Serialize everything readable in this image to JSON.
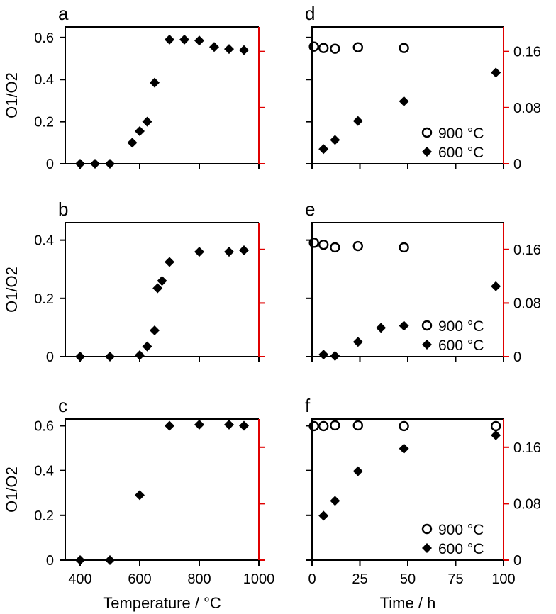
{
  "figure": {
    "x_axis_labels": {
      "temperature": "Temperature / °C",
      "time": "Time / h"
    },
    "y_axis_label": "O1/O2"
  },
  "chart_data": [
    {
      "panel": "a",
      "type": "scatter",
      "xlabel": "",
      "ylabel": "O1/O2",
      "xlim": [
        350,
        1000
      ],
      "ylim": [
        0,
        0.65
      ],
      "xticks": [
        400,
        600,
        800,
        1000
      ],
      "yticks": [
        0,
        0.2,
        0.4,
        0.6
      ],
      "ytick_labels": [
        "0",
        "0.2",
        "0.4",
        "0.6"
      ],
      "right_axis": {
        "lim": [
          0,
          0.195
        ],
        "ticks": [
          0,
          0.08,
          0.16
        ],
        "tick_labels": [],
        "color": "#e00000"
      },
      "series": [
        {
          "name": "O1/O2",
          "marker": "diamond",
          "x": [
            400,
            450,
            500,
            575,
            600,
            625,
            650,
            700,
            750,
            800,
            850,
            900,
            950
          ],
          "y": [
            0,
            0,
            0,
            0.1,
            0.155,
            0.2,
            0.385,
            0.59,
            0.59,
            0.585,
            0.555,
            0.545,
            0.54
          ]
        }
      ]
    },
    {
      "panel": "d",
      "type": "scatter",
      "xlabel": "",
      "ylabel": "",
      "xlim": [
        0,
        100
      ],
      "ylim": [
        0,
        0.65
      ],
      "xticks": [
        0,
        25,
        50,
        75,
        100
      ],
      "yticks": [
        0,
        0.2,
        0.4,
        0.6
      ],
      "ytick_labels": [],
      "right_axis": {
        "lim": [
          0,
          0.195
        ],
        "ticks": [
          0,
          0.08,
          0.16
        ],
        "tick_labels": [
          "0",
          "0.08",
          "0.16"
        ],
        "color": "#e00000"
      },
      "legend": [
        "900 °C",
        "600 °C"
      ],
      "series": [
        {
          "name": "900 °C",
          "marker": "circle",
          "axis": "right",
          "x": [
            1,
            6,
            12,
            24,
            48
          ],
          "y": [
            0.167,
            0.165,
            0.164,
            0.166,
            0.165
          ]
        },
        {
          "name": "600 °C",
          "marker": "diamond",
          "axis": "right",
          "x": [
            6,
            12,
            24,
            48,
            96
          ],
          "y": [
            0.021,
            0.034,
            0.061,
            0.089,
            0.13
          ]
        }
      ]
    },
    {
      "panel": "b",
      "type": "scatter",
      "xlabel": "",
      "ylabel": "O1/O2",
      "xlim": [
        350,
        1000
      ],
      "ylim": [
        0,
        0.46
      ],
      "xticks": [
        400,
        600,
        800,
        1000
      ],
      "yticks": [
        0,
        0.2,
        0.4
      ],
      "ytick_labels": [
        "0",
        "0.2",
        "0.4"
      ],
      "right_axis": {
        "lim": [
          0,
          0.2
        ],
        "ticks": [
          0,
          0.08,
          0.16
        ],
        "tick_labels": [],
        "color": "#e00000"
      },
      "series": [
        {
          "name": "O1/O2",
          "marker": "diamond",
          "x": [
            400,
            500,
            600,
            625,
            650,
            660,
            675,
            700,
            800,
            900,
            950
          ],
          "y": [
            0,
            0,
            0.005,
            0.035,
            0.09,
            0.235,
            0.26,
            0.325,
            0.36,
            0.36,
            0.365
          ]
        }
      ]
    },
    {
      "panel": "e",
      "type": "scatter",
      "xlabel": "",
      "ylabel": "",
      "xlim": [
        0,
        100
      ],
      "ylim": [
        0,
        0.46
      ],
      "xticks": [
        0,
        25,
        50,
        75,
        100
      ],
      "yticks": [
        0,
        0.2,
        0.4
      ],
      "ytick_labels": [],
      "right_axis": {
        "lim": [
          0,
          0.2
        ],
        "ticks": [
          0,
          0.08,
          0.16
        ],
        "tick_labels": [
          "0",
          "0.08",
          "0.16"
        ],
        "color": "#e00000"
      },
      "legend": [
        "900 °C",
        "600 °C"
      ],
      "series": [
        {
          "name": "900 °C",
          "marker": "circle",
          "axis": "right",
          "x": [
            1,
            6,
            12,
            24,
            48
          ],
          "y": [
            0.17,
            0.167,
            0.163,
            0.165,
            0.163
          ]
        },
        {
          "name": "600 °C",
          "marker": "diamond",
          "axis": "right",
          "x": [
            6,
            12,
            24,
            36,
            48,
            96
          ],
          "y": [
            0.003,
            0.001,
            0.022,
            0.043,
            0.046,
            0.105
          ]
        }
      ]
    },
    {
      "panel": "c",
      "type": "scatter",
      "xlabel": "Temperature / °C",
      "ylabel": "O1/O2",
      "xlim": [
        350,
        1000
      ],
      "ylim": [
        0,
        0.63
      ],
      "xticks": [
        400,
        600,
        800,
        1000
      ],
      "yticks": [
        0,
        0.2,
        0.4,
        0.6
      ],
      "ytick_labels": [
        "0",
        "0.2",
        "0.4",
        "0.6"
      ],
      "xtick_labels": [
        "400",
        "600",
        "800",
        "1000"
      ],
      "right_axis": {
        "lim": [
          0,
          0.2
        ],
        "ticks": [
          0,
          0.08,
          0.16
        ],
        "tick_labels": [],
        "color": "#e00000"
      },
      "series": [
        {
          "name": "O1/O2",
          "marker": "diamond",
          "x": [
            400,
            500,
            600,
            700,
            800,
            900,
            950
          ],
          "y": [
            0,
            0,
            0.29,
            0.6,
            0.605,
            0.605,
            0.6
          ]
        }
      ]
    },
    {
      "panel": "f",
      "type": "scatter",
      "xlabel": "Time / h",
      "ylabel": "",
      "xlim": [
        0,
        100
      ],
      "ylim": [
        0,
        0.63
      ],
      "xticks": [
        0,
        25,
        50,
        75,
        100
      ],
      "yticks": [
        0,
        0.2,
        0.4,
        0.6
      ],
      "ytick_labels": [],
      "xtick_labels": [
        "0",
        "25",
        "50",
        "75",
        "100"
      ],
      "right_axis": {
        "lim": [
          0,
          0.2
        ],
        "ticks": [
          0,
          0.08,
          0.16
        ],
        "tick_labels": [
          "0",
          "0.08",
          "0.16"
        ],
        "color": "#e00000"
      },
      "legend": [
        "900 °C",
        "600 °C"
      ],
      "series": [
        {
          "name": "900 °C",
          "marker": "circle",
          "axis": "right",
          "x": [
            1,
            6,
            12,
            24,
            48,
            96
          ],
          "y": [
            0.19,
            0.19,
            0.191,
            0.191,
            0.19,
            0.19
          ]
        },
        {
          "name": "600 °C",
          "marker": "diamond",
          "axis": "right",
          "x": [
            6,
            12,
            24,
            48,
            96
          ],
          "y": [
            0.063,
            0.084,
            0.126,
            0.158,
            0.177
          ]
        }
      ]
    }
  ]
}
